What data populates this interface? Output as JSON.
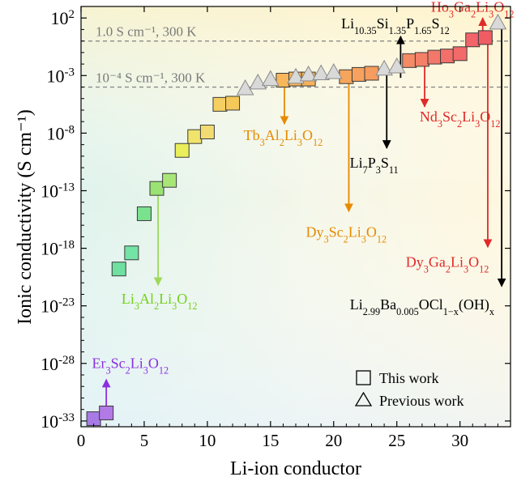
{
  "chart_data": {
    "type": "scatter",
    "xlabel": "Li-ion conductor",
    "ylabel": "Ionic conductivity (S cm⁻¹)",
    "xlim": [
      0,
      34
    ],
    "ylim": [
      -33.5,
      3
    ],
    "y_scale": "log10",
    "x_ticks": [
      {
        "value": 0,
        "label": "0"
      },
      {
        "value": 5,
        "label": "5"
      },
      {
        "value": 10,
        "label": "10"
      },
      {
        "value": 15,
        "label": "15"
      },
      {
        "value": 20,
        "label": "20"
      },
      {
        "value": 25,
        "label": "25"
      },
      {
        "value": 30,
        "label": "30"
      }
    ],
    "y_ticks": [
      {
        "value": 2,
        "base": "10",
        "exp": "2"
      },
      {
        "value": -3,
        "base": "10",
        "exp": "-3"
      },
      {
        "value": -8,
        "base": "10",
        "exp": "-8"
      },
      {
        "value": -13,
        "base": "10",
        "exp": "-13"
      },
      {
        "value": -18,
        "base": "10",
        "exp": "-18"
      },
      {
        "value": -23,
        "base": "10",
        "exp": "-23"
      },
      {
        "value": -28,
        "base": "10",
        "exp": "-28"
      },
      {
        "value": -33,
        "base": "10",
        "exp": "-33"
      }
    ],
    "reference_lines": [
      {
        "value": 0,
        "label": "1.0 S cm⁻¹, 300 K"
      },
      {
        "value": -4,
        "label": "10⁻⁴ S cm⁻¹, 300 K"
      }
    ],
    "legend": {
      "position": "bottom-right",
      "entries": [
        {
          "marker": "square",
          "label": "This work"
        },
        {
          "marker": "triangle",
          "label": "Previous work"
        }
      ]
    },
    "series": [
      {
        "name": "This work",
        "marker": "square",
        "points": [
          {
            "x": 1,
            "log_y": -32.8,
            "color": "#a77ae6"
          },
          {
            "x": 2,
            "log_y": -32.3,
            "color": "#b27ae6"
          },
          {
            "x": 3,
            "log_y": -19.8,
            "color": "#6fe0a0"
          },
          {
            "x": 4,
            "log_y": -18.4,
            "color": "#74e3a6"
          },
          {
            "x": 5,
            "log_y": -15.0,
            "color": "#7ae28e"
          },
          {
            "x": 6,
            "log_y": -12.8,
            "color": "#9be274"
          },
          {
            "x": 7,
            "log_y": -12.1,
            "color": "#a9e678"
          },
          {
            "x": 8,
            "log_y": -9.5,
            "color": "#e9ee5a"
          },
          {
            "x": 9,
            "log_y": -8.3,
            "color": "#f0e46c"
          },
          {
            "x": 10,
            "log_y": -7.9,
            "color": "#f2dc72"
          },
          {
            "x": 11,
            "log_y": -5.5,
            "color": "#f5cf61"
          },
          {
            "x": 12,
            "log_y": -5.4,
            "color": "#f5c85a"
          },
          {
            "x": 16,
            "log_y": -3.4,
            "color": "#f7b75a"
          },
          {
            "x": 17,
            "log_y": -3.3,
            "color": "#f7b55a"
          },
          {
            "x": 18,
            "log_y": -3.3,
            "color": "#f7b25a"
          },
          {
            "x": 21,
            "log_y": -3.1,
            "color": "#f6a65c"
          },
          {
            "x": 22,
            "log_y": -2.9,
            "color": "#f6a25e"
          },
          {
            "x": 23,
            "log_y": -2.8,
            "color": "#f69c5e"
          },
          {
            "x": 26,
            "log_y": -1.7,
            "color": "#f48a66"
          },
          {
            "x": 27,
            "log_y": -1.6,
            "color": "#f48068"
          },
          {
            "x": 28,
            "log_y": -1.4,
            "color": "#f3786a"
          },
          {
            "x": 29,
            "log_y": -1.3,
            "color": "#f2706a"
          },
          {
            "x": 30,
            "log_y": -1.1,
            "color": "#f26a6a"
          },
          {
            "x": 31,
            "log_y": 0.1,
            "color": "#f2646a"
          },
          {
            "x": 32,
            "log_y": 0.3,
            "color": "#f05c64"
          }
        ]
      },
      {
        "name": "Previous work",
        "marker": "triangle",
        "points": [
          {
            "x": 13,
            "log_y": -4.1
          },
          {
            "x": 14,
            "log_y": -3.6
          },
          {
            "x": 15,
            "log_y": -3.3
          },
          {
            "x": 17,
            "log_y": -3.1
          },
          {
            "x": 18,
            "log_y": -2.9
          },
          {
            "x": 19,
            "log_y": -2.8
          },
          {
            "x": 20,
            "log_y": -2.7
          },
          {
            "x": 24,
            "log_y": -2.4
          },
          {
            "x": 25,
            "log_y": -2.2
          },
          {
            "x": 33,
            "log_y": 1.6
          }
        ]
      }
    ],
    "annotations": [
      {
        "formula": [
          [
            "Li"
          ],
          [
            "10.35",
            "sub"
          ],
          [
            "Si"
          ],
          [
            "1.35",
            "sub"
          ],
          [
            "P"
          ],
          [
            "1.65",
            "sub"
          ],
          [
            "S"
          ],
          [
            "12",
            "sub"
          ]
        ],
        "color": "#000000",
        "tx": 20.6,
        "ty": 1.1,
        "anchor": "start",
        "arrow": {
          "x": 25.3,
          "from_log_y": -3.2,
          "to_log_y": 0.4,
          "color": "#000000"
        }
      },
      {
        "formula": [
          [
            "Ho"
          ],
          [
            "3",
            "sub"
          ],
          [
            "Ga"
          ],
          [
            "2",
            "sub"
          ],
          [
            "Li"
          ],
          [
            "3",
            "sub"
          ],
          [
            "O"
          ],
          [
            "12",
            "sub"
          ]
        ],
        "color": "#e02a2a",
        "tx": 31.0,
        "ty": 2.55,
        "anchor": "middle",
        "arrow": {
          "x": 31.8,
          "from_log_y": 0.6,
          "to_log_y": 2.0,
          "color": "#e02a2a"
        }
      },
      {
        "formula": [
          [
            "Nd"
          ],
          [
            "3",
            "sub"
          ],
          [
            "Sc"
          ],
          [
            "2",
            "sub"
          ],
          [
            "Li"
          ],
          [
            "3",
            "sub"
          ],
          [
            "O"
          ],
          [
            "12",
            "sub"
          ]
        ],
        "color": "#e02a2a",
        "tx": 30.0,
        "ty": -7.0,
        "anchor": "middle",
        "arrow": {
          "x": 27.2,
          "from_log_y": -1.2,
          "to_log_y": -5.7,
          "color": "#e02a2a"
        }
      },
      {
        "formula": [
          [
            "Tb"
          ],
          [
            "3",
            "sub"
          ],
          [
            "Al"
          ],
          [
            "2",
            "sub"
          ],
          [
            "Li"
          ],
          [
            "3",
            "sub"
          ],
          [
            "O"
          ],
          [
            "12",
            "sub"
          ]
        ],
        "color": "#e68a00",
        "tx": 16.0,
        "ty": -8.6,
        "anchor": "middle",
        "arrow": {
          "x": 16.1,
          "from_log_y": -3.4,
          "to_log_y": -7.2,
          "color": "#e68a00"
        }
      },
      {
        "formula": [
          [
            "Li"
          ],
          [
            "7",
            "sub"
          ],
          [
            "P"
          ],
          [
            "3",
            "sub"
          ],
          [
            "S"
          ],
          [
            "11",
            "sub"
          ]
        ],
        "color": "#000000",
        "tx": 23.2,
        "ty": -11.0,
        "anchor": "middle",
        "arrow": {
          "x": 24.2,
          "from_log_y": -2.4,
          "to_log_y": -9.3,
          "color": "#000000"
        }
      },
      {
        "formula": [
          [
            "Dy"
          ],
          [
            "3",
            "sub"
          ],
          [
            "Sc"
          ],
          [
            "2",
            "sub"
          ],
          [
            "Li"
          ],
          [
            "3",
            "sub"
          ],
          [
            "O"
          ],
          [
            "12",
            "sub"
          ]
        ],
        "color": "#e68a00",
        "tx": 21.0,
        "ty": -17.0,
        "anchor": "middle",
        "arrow": {
          "x": 21.2,
          "from_log_y": -3.2,
          "to_log_y": -14.8,
          "color": "#e68a00"
        }
      },
      {
        "formula": [
          [
            "Dy"
          ],
          [
            "3",
            "sub"
          ],
          [
            "Ga"
          ],
          [
            "2",
            "sub"
          ],
          [
            "Li"
          ],
          [
            "3",
            "sub"
          ],
          [
            "O"
          ],
          [
            "12",
            "sub"
          ]
        ],
        "color": "#e02a2a",
        "tx": 29.0,
        "ty": -19.6,
        "anchor": "middle",
        "arrow": {
          "x": 32.2,
          "from_log_y": 0.2,
          "to_log_y": -17.9,
          "color": "#e02a2a"
        }
      },
      {
        "formula": [
          [
            "Li"
          ],
          [
            "2.99",
            "sub"
          ],
          [
            "Ba"
          ],
          [
            "0.005",
            "sub"
          ],
          [
            "OCl"
          ],
          [
            "1−x",
            "sub"
          ],
          [
            "(OH)"
          ],
          [
            "x",
            "sub"
          ]
        ],
        "color": "#000000",
        "tx": 27.0,
        "ty": -23.3,
        "anchor": "middle",
        "arrow": {
          "x": 33.3,
          "from_log_y": 1.4,
          "to_log_y": -21.3,
          "color": "#000000"
        }
      },
      {
        "formula": [
          [
            "Li"
          ],
          [
            "3",
            "sub"
          ],
          [
            "Al"
          ],
          [
            "2",
            "sub"
          ],
          [
            "Li"
          ],
          [
            "3",
            "sub"
          ],
          [
            "O"
          ],
          [
            "12",
            "sub"
          ]
        ],
        "color": "#74d11a",
        "tx": 6.2,
        "ty": -22.8,
        "anchor": "middle",
        "arrow": {
          "x": 6.1,
          "from_log_y": -13.3,
          "to_log_y": -21.2,
          "color": "#9fd85a"
        }
      },
      {
        "formula": [
          [
            "Er"
          ],
          [
            "3",
            "sub"
          ],
          [
            "Sc"
          ],
          [
            "2",
            "sub"
          ],
          [
            "Li"
          ],
          [
            "3",
            "sub"
          ],
          [
            "O"
          ],
          [
            "12",
            "sub"
          ]
        ],
        "color": "#8b2fe0",
        "tx": 3.9,
        "ty": -28.4,
        "anchor": "middle",
        "arrow": {
          "x": 2.0,
          "from_log_y": -32.0,
          "to_log_y": -29.4,
          "color": "#8b2fe0"
        }
      }
    ]
  }
}
